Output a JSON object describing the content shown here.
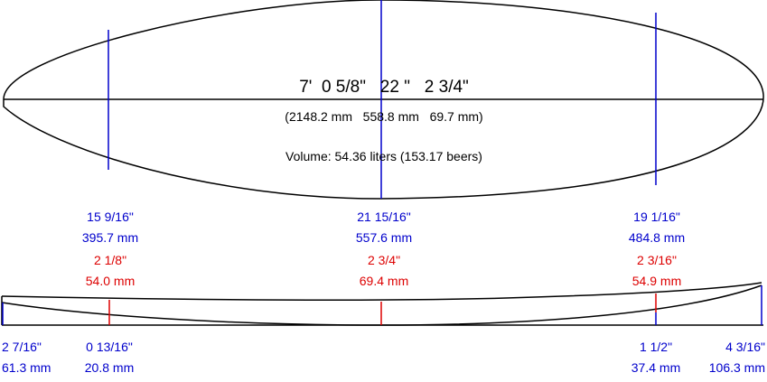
{
  "board": {
    "dimensions_imperial": "7'  0 5/8\"   22 \"   2 3/4\"",
    "dimensions_metric": "(2148.2 mm   558.8 mm   69.7 mm)",
    "volume": "Volume: 54.36 liters (153.17 beers)"
  },
  "stations": [
    {
      "width_in": "15 9/16\"",
      "width_mm": "395.7 mm",
      "thick_in": "2 1/8\"",
      "thick_mm": "54.0 mm"
    },
    {
      "width_in": "21 15/16\"",
      "width_mm": "557.6 mm",
      "thick_in": "2 3/4\"",
      "thick_mm": "69.4 mm"
    },
    {
      "width_in": "19 1/16\"",
      "width_mm": "484.8 mm",
      "thick_in": "2 3/16\"",
      "thick_mm": "54.9 mm"
    }
  ],
  "rocker": {
    "nose_left_in": "2 7/16\"",
    "nose_left_mm": "61.3 mm",
    "left_in": "0 13/16\"",
    "left_mm": "20.8 mm",
    "right_in": "1 1/2\"",
    "right_mm": "37.4 mm",
    "tail_right_in": "4 3/16\"",
    "tail_right_mm": "106.3 mm"
  },
  "colors": {
    "outline": "#000000",
    "width_lines": "#0000cc",
    "thickness_lines": "#dd0000"
  }
}
